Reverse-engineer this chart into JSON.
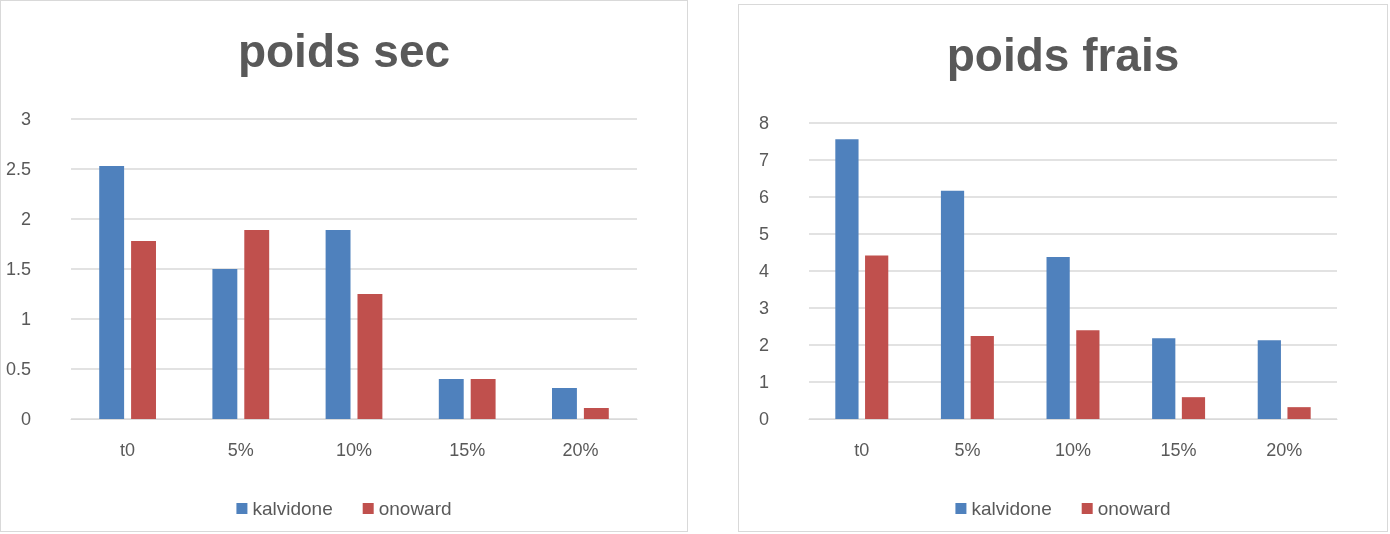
{
  "chart_data": [
    {
      "type": "bar",
      "title": "poids sec",
      "categories": [
        "t0",
        "5%",
        "10%",
        "15%",
        "20%"
      ],
      "series": [
        {
          "name": "kalvidone",
          "color": "#4f81bd",
          "values": [
            2.53,
            1.5,
            1.89,
            0.4,
            0.31
          ]
        },
        {
          "name": "onoward",
          "color": "#c0504d",
          "values": [
            1.78,
            1.89,
            1.25,
            0.4,
            0.11
          ]
        }
      ],
      "ylim": [
        0,
        3
      ],
      "yticks": [
        0,
        0.5,
        1,
        1.5,
        2,
        2.5,
        3
      ],
      "grid": "y",
      "legend": "bottom"
    },
    {
      "type": "bar",
      "title": "poids frais",
      "categories": [
        "t0",
        "5%",
        "10%",
        "15%",
        "20%"
      ],
      "series": [
        {
          "name": "kalvidone",
          "color": "#4f81bd",
          "values": [
            7.56,
            6.17,
            4.38,
            2.18,
            2.13
          ]
        },
        {
          "name": "onoward",
          "color": "#c0504d",
          "values": [
            4.42,
            2.24,
            2.4,
            0.59,
            0.32
          ]
        }
      ],
      "ylim": [
        0,
        8
      ],
      "yticks": [
        0,
        1,
        2,
        3,
        4,
        5,
        6,
        7,
        8
      ],
      "grid": "y",
      "legend": "bottom"
    }
  ]
}
